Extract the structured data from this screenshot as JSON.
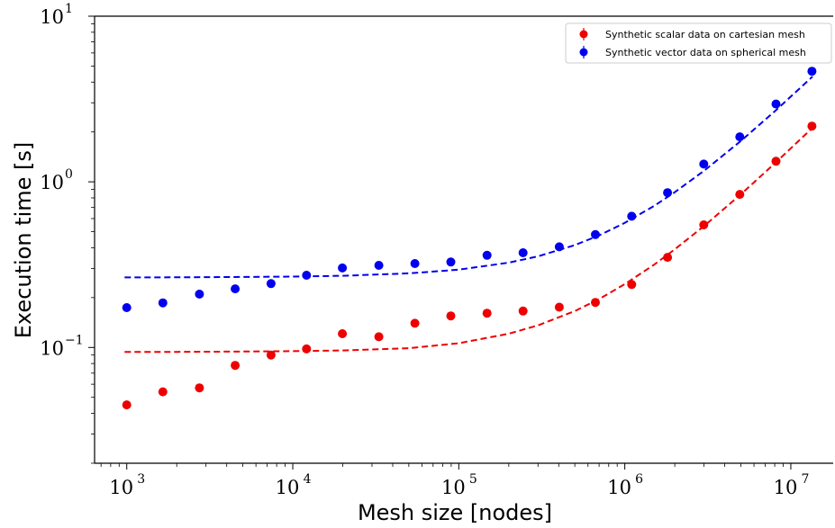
{
  "chart_data": {
    "type": "scatter",
    "xlabel": "Mesh size [nodes]",
    "ylabel": "Execution time [s]",
    "xscale": "log",
    "yscale": "log",
    "xlim": [
      640,
      18000000
    ],
    "ylim": [
      0.02,
      10
    ],
    "x_ticks": [
      {
        "base": "10",
        "exp": "3",
        "value": 1000
      },
      {
        "base": "10",
        "exp": "4",
        "value": 10000
      },
      {
        "base": "10",
        "exp": "5",
        "value": 100000
      },
      {
        "base": "10",
        "exp": "6",
        "value": 1000000
      },
      {
        "base": "10",
        "exp": "7",
        "value": 10000000
      }
    ],
    "y_ticks": [
      {
        "base": "10",
        "exp": "−1",
        "value": 0.1
      },
      {
        "base": "10",
        "exp": "0",
        "value": 1
      },
      {
        "base": "10",
        "exp": "1",
        "value": 10
      }
    ],
    "grid": false,
    "legend_position": "top-right",
    "series": [
      {
        "name": "Synthetic scalar data on cartesian mesh",
        "color": "#ee0000",
        "x": [
          1000,
          1650,
          2740,
          4500,
          7400,
          12100,
          19900,
          33000,
          54400,
          89600,
          148000,
          244000,
          403000,
          665000,
          1100000,
          1810000,
          2990000,
          4930000,
          8140000,
          13400000
        ],
        "y": [
          0.045,
          0.054,
          0.057,
          0.078,
          0.09,
          0.098,
          0.121,
          0.116,
          0.14,
          0.155,
          0.161,
          0.166,
          0.175,
          0.187,
          0.24,
          0.35,
          0.55,
          0.84,
          1.33,
          2.17
        ],
        "fit": {
          "x": [
            970,
            2000,
            5000,
            10000,
            20000,
            50000,
            100000,
            200000,
            300000,
            500000,
            700000,
            1000000,
            1500000,
            2000000,
            3000000,
            5000000,
            8000000,
            13500000
          ],
          "y": [
            0.094,
            0.094,
            0.0945,
            0.095,
            0.096,
            0.099,
            0.106,
            0.121,
            0.136,
            0.166,
            0.196,
            0.241,
            0.316,
            0.391,
            0.541,
            0.841,
            1.291,
            2.116
          ]
        }
      },
      {
        "name": "Synthetic vector data on spherical mesh",
        "color": "#0000ee",
        "x": [
          1000,
          1650,
          2740,
          4500,
          7400,
          12100,
          19900,
          33000,
          54400,
          89600,
          148000,
          244000,
          403000,
          665000,
          1100000,
          1810000,
          2990000,
          4930000,
          8140000,
          13400000
        ],
        "y": [
          0.174,
          0.186,
          0.21,
          0.226,
          0.243,
          0.273,
          0.302,
          0.313,
          0.321,
          0.328,
          0.36,
          0.373,
          0.405,
          0.48,
          0.62,
          0.86,
          1.28,
          1.87,
          2.95,
          4.65
        ],
        "fit": {
          "x": [
            970,
            2000,
            5000,
            10000,
            20000,
            50000,
            100000,
            200000,
            300000,
            500000,
            700000,
            1000000,
            1500000,
            2000000,
            3000000,
            5000000,
            8000000,
            13500000
          ],
          "y": [
            0.265,
            0.2653,
            0.2665,
            0.268,
            0.271,
            0.28,
            0.295,
            0.325,
            0.355,
            0.415,
            0.475,
            0.565,
            0.715,
            0.865,
            1.165,
            1.765,
            2.665,
            4.315
          ]
        }
      }
    ]
  }
}
